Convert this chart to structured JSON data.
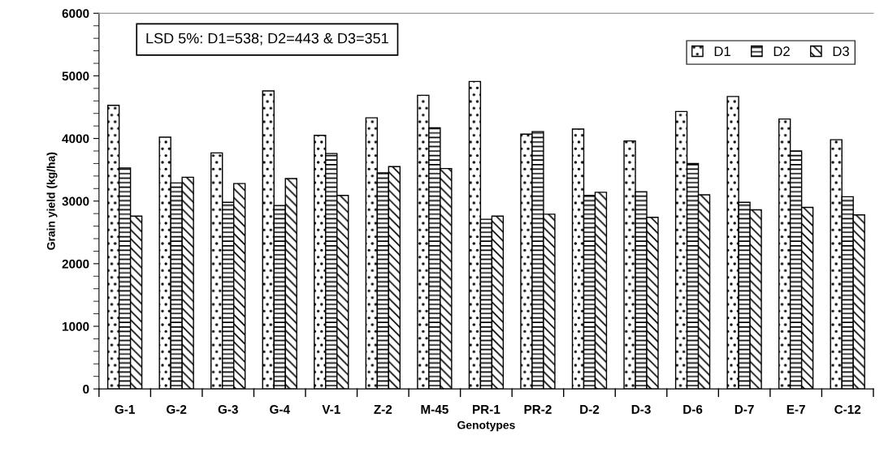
{
  "chart_data": {
    "type": "bar",
    "xlabel": "Genotypes",
    "ylabel": "Grain yield (kg/ha)",
    "categories": [
      "G-1",
      "G-2",
      "G-3",
      "G-4",
      "V-1",
      "Z-2",
      "M-45",
      "PR-1",
      "PR-2",
      "D-2",
      "D-3",
      "D-6",
      "D-7",
      "E-7",
      "C-12"
    ],
    "series": [
      {
        "name": "D1",
        "color": "#000000",
        "values": [
          4530,
          4020,
          3770,
          4760,
          4050,
          4330,
          4690,
          4910,
          4070,
          4150,
          3960,
          4430,
          4670,
          4310,
          3980
        ]
      },
      {
        "name": "D2",
        "color": "#000000",
        "values": [
          3530,
          3290,
          2980,
          2930,
          3760,
          3450,
          4170,
          2710,
          4110,
          3090,
          3150,
          3600,
          2980,
          3800,
          3070
        ]
      },
      {
        "name": "D3",
        "color": "#000000",
        "values": [
          2760,
          3380,
          3280,
          3360,
          3090,
          3550,
          3520,
          2760,
          2790,
          3140,
          2740,
          3100,
          2860,
          2900,
          2780
        ]
      }
    ],
    "ylim": [
      0,
      6000
    ],
    "yticks": [
      0,
      1000,
      2000,
      3000,
      4000,
      5000,
      6000
    ],
    "grid": false,
    "legend": "top right",
    "annotations": [
      "LSD 5%: D1=538; D2=443 & D3=351"
    ]
  }
}
